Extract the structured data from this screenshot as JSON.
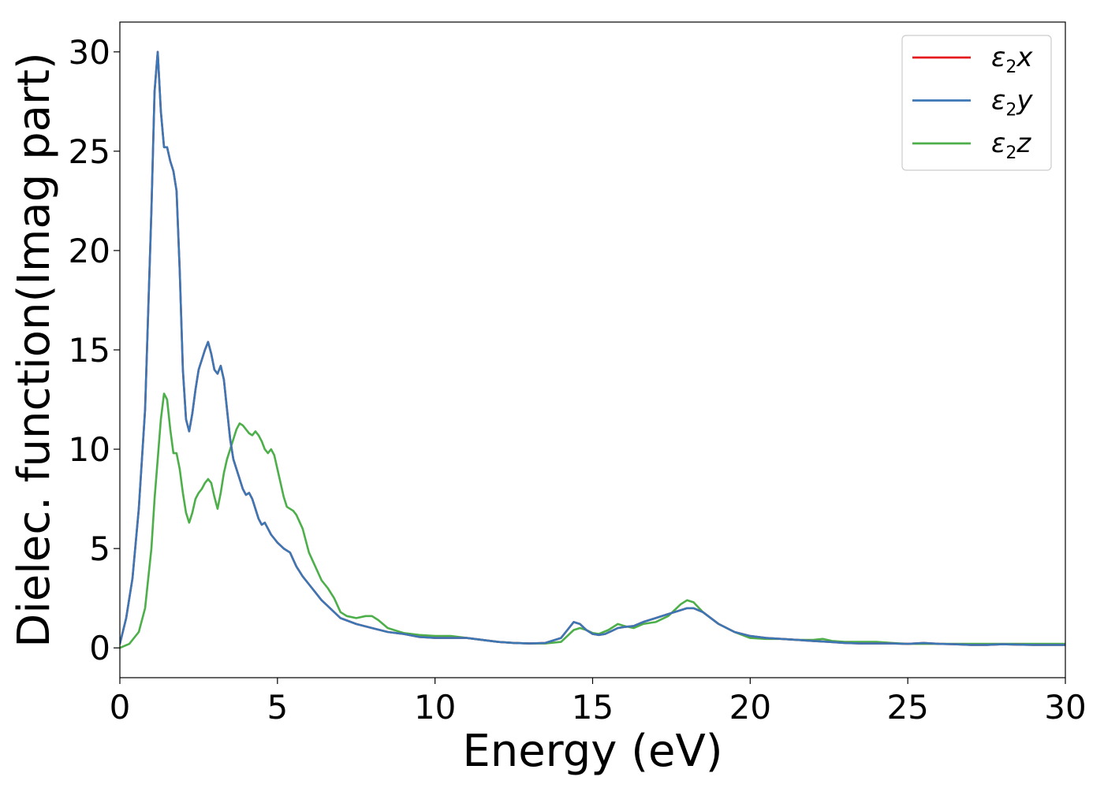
{
  "chart_data": {
    "type": "line",
    "title": "",
    "xlabel": "Energy (eV)",
    "ylabel": "Dielec. function(Imag part)",
    "xlim": [
      0,
      30
    ],
    "ylim": [
      -1.5,
      31.5
    ],
    "xticks": [
      "0",
      "5",
      "10",
      "15",
      "20",
      "25",
      "30"
    ],
    "yticks": [
      "0",
      "5",
      "10",
      "15",
      "20",
      "25",
      "30"
    ],
    "grid": false,
    "legend_position": "top-right",
    "series": [
      {
        "name": "ε2x",
        "legend_base": "ε",
        "legend_sub": "2",
        "legend_var": "x",
        "color": "#e41a1c",
        "x": [
          0,
          0.2,
          0.4,
          0.6,
          0.8,
          1.0,
          1.1,
          1.2,
          1.3,
          1.4,
          1.5,
          1.6,
          1.7,
          1.8,
          1.9,
          2.0,
          2.1,
          2.2,
          2.3,
          2.4,
          2.5,
          2.6,
          2.7,
          2.8,
          2.9,
          3.0,
          3.1,
          3.2,
          3.3,
          3.4,
          3.5,
          3.6,
          3.7,
          3.8,
          3.9,
          4.0,
          4.1,
          4.2,
          4.3,
          4.4,
          4.5,
          4.6,
          4.7,
          4.8,
          4.9,
          5.0,
          5.2,
          5.4,
          5.6,
          5.8,
          6.0,
          6.2,
          6.4,
          6.6,
          6.8,
          7.0,
          7.5,
          8.0,
          8.5,
          9.0,
          9.5,
          10.0,
          10.5,
          11.0,
          11.5,
          12.0,
          12.5,
          13.0,
          13.5,
          14.0,
          14.2,
          14.4,
          14.6,
          14.8,
          15.0,
          15.2,
          15.4,
          15.6,
          15.8,
          16.0,
          16.3,
          16.6,
          17.0,
          17.4,
          17.8,
          18.0,
          18.2,
          18.5,
          19.0,
          19.5,
          20.0,
          20.5,
          21.0,
          21.5,
          22.0,
          22.5,
          23.0,
          23.5,
          24.0,
          24.5,
          25.0,
          25.5,
          26.0,
          26.5,
          27.0,
          27.5,
          28.0,
          28.5,
          29.0,
          29.5,
          30.0
        ],
        "values": [
          0.2,
          1.5,
          3.5,
          7.0,
          12.0,
          22.0,
          28.0,
          30.0,
          27.0,
          25.2,
          25.2,
          24.5,
          24.0,
          23.0,
          19.0,
          14.0,
          11.5,
          10.9,
          11.8,
          13.0,
          14.0,
          14.5,
          15.0,
          15.4,
          14.8,
          14.0,
          13.8,
          14.2,
          13.5,
          12.0,
          10.5,
          9.5,
          9.0,
          8.5,
          8.0,
          7.7,
          7.8,
          7.5,
          7.0,
          6.5,
          6.2,
          6.3,
          6.0,
          5.7,
          5.5,
          5.3,
          5.0,
          4.8,
          4.1,
          3.6,
          3.2,
          2.8,
          2.4,
          2.1,
          1.8,
          1.5,
          1.2,
          1.0,
          0.8,
          0.7,
          0.55,
          0.5,
          0.5,
          0.5,
          0.4,
          0.3,
          0.25,
          0.22,
          0.25,
          0.5,
          0.9,
          1.3,
          1.2,
          0.9,
          0.7,
          0.65,
          0.7,
          0.85,
          1.0,
          1.05,
          1.1,
          1.3,
          1.5,
          1.7,
          1.9,
          2.0,
          2.0,
          1.8,
          1.2,
          0.8,
          0.6,
          0.5,
          0.45,
          0.4,
          0.35,
          0.3,
          0.25,
          0.22,
          0.22,
          0.22,
          0.2,
          0.25,
          0.2,
          0.18,
          0.15,
          0.15,
          0.18,
          0.16,
          0.15,
          0.15,
          0.15
        ]
      },
      {
        "name": "ε2y",
        "legend_base": "ε",
        "legend_sub": "2",
        "legend_var": "y",
        "color": "#3c77b5",
        "x": [
          0,
          0.2,
          0.4,
          0.6,
          0.8,
          1.0,
          1.1,
          1.2,
          1.3,
          1.4,
          1.5,
          1.6,
          1.7,
          1.8,
          1.9,
          2.0,
          2.1,
          2.2,
          2.3,
          2.4,
          2.5,
          2.6,
          2.7,
          2.8,
          2.9,
          3.0,
          3.1,
          3.2,
          3.3,
          3.4,
          3.5,
          3.6,
          3.7,
          3.8,
          3.9,
          4.0,
          4.1,
          4.2,
          4.3,
          4.4,
          4.5,
          4.6,
          4.7,
          4.8,
          4.9,
          5.0,
          5.2,
          5.4,
          5.6,
          5.8,
          6.0,
          6.2,
          6.4,
          6.6,
          6.8,
          7.0,
          7.5,
          8.0,
          8.5,
          9.0,
          9.5,
          10.0,
          10.5,
          11.0,
          11.5,
          12.0,
          12.5,
          13.0,
          13.5,
          14.0,
          14.2,
          14.4,
          14.6,
          14.8,
          15.0,
          15.2,
          15.4,
          15.6,
          15.8,
          16.0,
          16.3,
          16.6,
          17.0,
          17.4,
          17.8,
          18.0,
          18.2,
          18.5,
          19.0,
          19.5,
          20.0,
          20.5,
          21.0,
          21.5,
          22.0,
          22.5,
          23.0,
          23.5,
          24.0,
          24.5,
          25.0,
          25.5,
          26.0,
          26.5,
          27.0,
          27.5,
          28.0,
          28.5,
          29.0,
          29.5,
          30.0
        ],
        "values": [
          0.2,
          1.5,
          3.5,
          7.0,
          12.0,
          22.0,
          28.0,
          30.0,
          27.0,
          25.2,
          25.2,
          24.5,
          24.0,
          23.0,
          19.0,
          14.0,
          11.5,
          10.9,
          11.8,
          13.0,
          14.0,
          14.5,
          15.0,
          15.4,
          14.8,
          14.0,
          13.8,
          14.2,
          13.5,
          12.0,
          10.5,
          9.5,
          9.0,
          8.5,
          8.0,
          7.7,
          7.8,
          7.5,
          7.0,
          6.5,
          6.2,
          6.3,
          6.0,
          5.7,
          5.5,
          5.3,
          5.0,
          4.8,
          4.1,
          3.6,
          3.2,
          2.8,
          2.4,
          2.1,
          1.8,
          1.5,
          1.2,
          1.0,
          0.8,
          0.7,
          0.55,
          0.5,
          0.5,
          0.5,
          0.4,
          0.3,
          0.25,
          0.22,
          0.25,
          0.5,
          0.9,
          1.3,
          1.2,
          0.9,
          0.7,
          0.65,
          0.7,
          0.85,
          1.0,
          1.05,
          1.1,
          1.3,
          1.5,
          1.7,
          1.9,
          2.0,
          2.0,
          1.8,
          1.2,
          0.8,
          0.6,
          0.5,
          0.45,
          0.4,
          0.35,
          0.3,
          0.25,
          0.22,
          0.22,
          0.22,
          0.2,
          0.25,
          0.2,
          0.18,
          0.15,
          0.15,
          0.18,
          0.16,
          0.15,
          0.15,
          0.15
        ]
      },
      {
        "name": "ε2z",
        "legend_base": "ε",
        "legend_sub": "2",
        "legend_var": "z",
        "color": "#4daf4a",
        "x": [
          0,
          0.3,
          0.6,
          0.8,
          1.0,
          1.1,
          1.2,
          1.3,
          1.4,
          1.5,
          1.6,
          1.7,
          1.8,
          1.9,
          2.0,
          2.1,
          2.2,
          2.3,
          2.4,
          2.5,
          2.6,
          2.7,
          2.8,
          2.9,
          3.0,
          3.1,
          3.2,
          3.3,
          3.4,
          3.5,
          3.6,
          3.7,
          3.8,
          3.9,
          4.0,
          4.1,
          4.2,
          4.3,
          4.4,
          4.5,
          4.6,
          4.7,
          4.8,
          4.9,
          5.0,
          5.1,
          5.2,
          5.3,
          5.4,
          5.5,
          5.6,
          5.8,
          6.0,
          6.2,
          6.4,
          6.6,
          6.8,
          7.0,
          7.2,
          7.5,
          7.8,
          8.0,
          8.2,
          8.5,
          9.0,
          9.5,
          10.0,
          10.5,
          11.0,
          11.5,
          12.0,
          12.5,
          13.0,
          13.5,
          14.0,
          14.2,
          14.4,
          14.6,
          14.8,
          15.0,
          15.2,
          15.5,
          15.8,
          16.0,
          16.3,
          16.6,
          17.0,
          17.4,
          17.8,
          18.0,
          18.2,
          18.5,
          19.0,
          19.5,
          20.0,
          20.5,
          21.0,
          21.5,
          22.0,
          22.3,
          22.6,
          23.0,
          23.5,
          24.0,
          24.5,
          25.0,
          25.5,
          26.0,
          26.5,
          27.0,
          27.5,
          28.0,
          28.5,
          29.0,
          29.5,
          30.0
        ],
        "values": [
          0.0,
          0.2,
          0.8,
          2.0,
          5.0,
          7.5,
          9.5,
          11.5,
          12.8,
          12.5,
          11.0,
          9.8,
          9.8,
          9.0,
          7.8,
          6.8,
          6.3,
          6.8,
          7.5,
          7.8,
          8.0,
          8.3,
          8.5,
          8.3,
          7.6,
          7.0,
          7.8,
          8.8,
          9.5,
          10.0,
          10.5,
          11.0,
          11.3,
          11.2,
          11.0,
          10.8,
          10.7,
          10.9,
          10.7,
          10.4,
          10.0,
          9.8,
          10.0,
          9.7,
          9.0,
          8.3,
          7.6,
          7.1,
          7.0,
          6.9,
          6.7,
          6.0,
          4.8,
          4.1,
          3.4,
          3.0,
          2.5,
          1.8,
          1.6,
          1.5,
          1.6,
          1.6,
          1.4,
          1.0,
          0.75,
          0.65,
          0.6,
          0.6,
          0.5,
          0.4,
          0.3,
          0.25,
          0.22,
          0.22,
          0.3,
          0.6,
          0.9,
          1.0,
          0.9,
          0.75,
          0.7,
          0.9,
          1.2,
          1.1,
          1.0,
          1.2,
          1.3,
          1.6,
          2.2,
          2.4,
          2.3,
          1.8,
          1.2,
          0.8,
          0.5,
          0.45,
          0.45,
          0.4,
          0.4,
          0.45,
          0.35,
          0.3,
          0.3,
          0.3,
          0.25,
          0.2,
          0.2,
          0.2,
          0.2,
          0.2,
          0.2,
          0.2,
          0.2,
          0.2,
          0.2,
          0.2
        ]
      }
    ]
  }
}
